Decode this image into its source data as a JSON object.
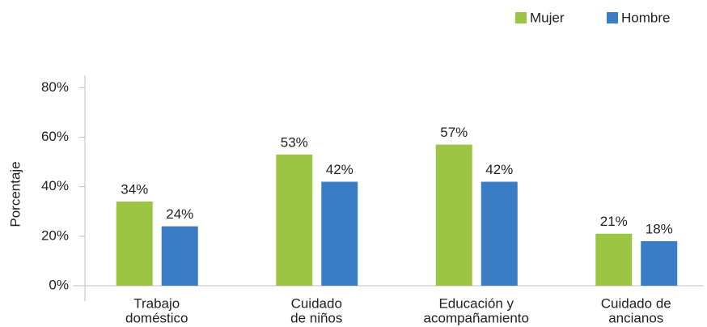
{
  "chart_data": {
    "type": "bar",
    "y_label": "Porcentaje",
    "categories": [
      [
        "Trabajo",
        "doméstico"
      ],
      [
        "Cuidado",
        "de niños"
      ],
      [
        "Educación y",
        "acompañamiento"
      ],
      [
        "Cuidado de",
        "ancianos"
      ]
    ],
    "series": [
      {
        "name": "Mujer",
        "color": "#9dc544",
        "values": [
          34,
          53,
          57,
          21
        ],
        "value_labels": [
          "34%",
          "53%",
          "57%",
          "21%"
        ]
      },
      {
        "name": "Hombre",
        "color": "#3a7dc4",
        "values": [
          24,
          42,
          42,
          18
        ],
        "value_labels": [
          "24%",
          "42%",
          "42%",
          "18%"
        ]
      }
    ],
    "ylim": [
      0,
      85
    ],
    "yticks": [
      {
        "value": 0,
        "label": "0%"
      },
      {
        "value": 20,
        "label": "20%"
      },
      {
        "value": 40,
        "label": "40%"
      },
      {
        "value": 60,
        "label": "60%"
      },
      {
        "value": 80,
        "label": "80%"
      }
    ],
    "legend": "top-right"
  }
}
